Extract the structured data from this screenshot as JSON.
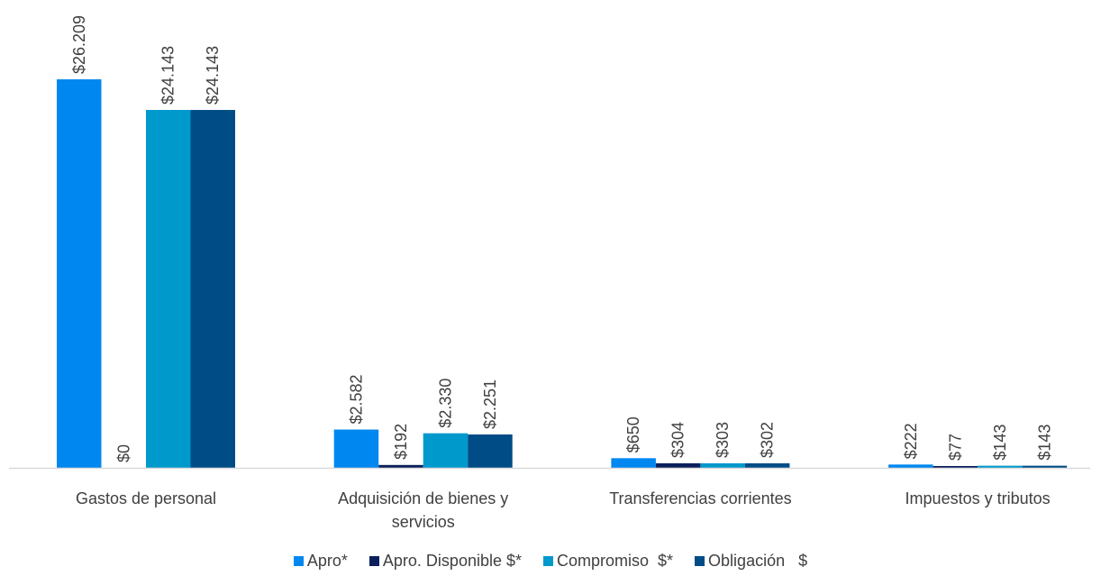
{
  "chart_data": {
    "type": "bar",
    "categories": [
      [
        "Gastos de personal"
      ],
      [
        "Adquisición de bienes y",
        "servicios"
      ],
      [
        "Transferencias corrientes"
      ],
      [
        "Impuestos y tributos"
      ]
    ],
    "series": [
      {
        "name": "Apro*",
        "color": "#0088F0",
        "values": [
          26209,
          2582,
          650,
          222
        ],
        "labels": [
          "$26.209",
          "$2.582",
          "$650",
          "$222"
        ]
      },
      {
        "name": "Apro. Disponible $*",
        "color": "#0B1F5C",
        "values": [
          0,
          192,
          304,
          77
        ],
        "labels": [
          "$0",
          "$192",
          "$304",
          "$77"
        ]
      },
      {
        "name": "Compromiso  $*",
        "color": "#0099CC",
        "values": [
          24143,
          2330,
          303,
          143
        ],
        "labels": [
          "$24.143",
          "$2.330",
          "$303",
          "$143"
        ]
      },
      {
        "name": "Obligación   $",
        "color": "#004C86",
        "values": [
          24143,
          2251,
          302,
          143
        ],
        "labels": [
          "$24.143",
          "$2.251",
          "$302",
          "$143"
        ]
      }
    ],
    "ylim": [
      0,
      26209
    ],
    "grid": false,
    "legend_position": "bottom",
    "title": "",
    "xlabel": "",
    "ylabel": ""
  }
}
